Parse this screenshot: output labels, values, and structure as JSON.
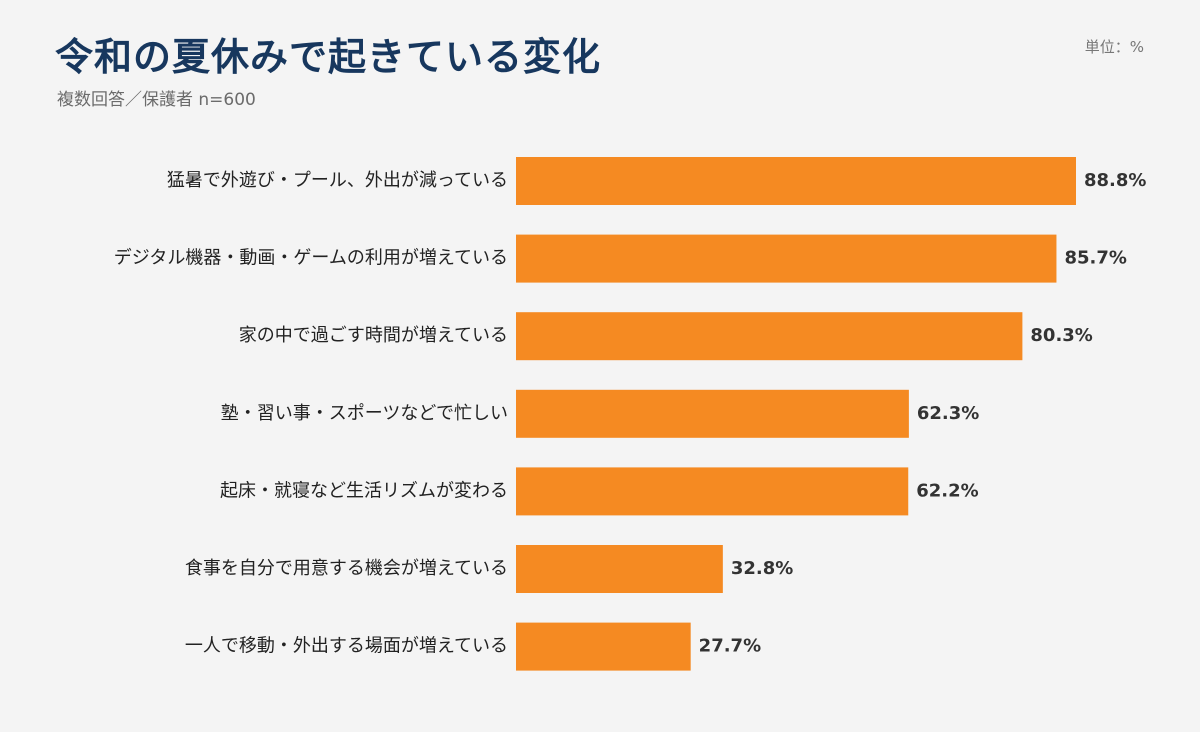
{
  "header": {
    "title": "令和の夏休みで起きている変化",
    "subtitle": "複数回答／保護者 n=600",
    "unit": "単位：%"
  },
  "colors": {
    "bar": "#f58a22",
    "title": "#17375e",
    "background": "#f4f4f4"
  },
  "chart_data": {
    "type": "bar",
    "orientation": "horizontal",
    "title": "令和の夏休みで起きている変化",
    "subtitle": "複数回答／保護者 n=600",
    "unit": "%",
    "categories": [
      "猛暑で外遊び・プール、外出が減っている",
      "デジタル機器・動画・ゲームの利用が増えている",
      "家の中で過ごす時間が増えている",
      "塾・習い事・スポーツなどで忙しい",
      "起床・就寝など生活リズムが変わる",
      "食事を自分で用意する機会が増えている",
      "一人で移動・外出する場面が増えている"
    ],
    "values": [
      88.8,
      85.7,
      80.3,
      62.3,
      62.2,
      32.8,
      27.7
    ],
    "value_labels": [
      "88.8%",
      "85.7%",
      "80.3%",
      "62.3%",
      "62.2%",
      "32.8%",
      "27.7%"
    ],
    "xlim": [
      0,
      100
    ],
    "grid": false,
    "legend": "none"
  }
}
